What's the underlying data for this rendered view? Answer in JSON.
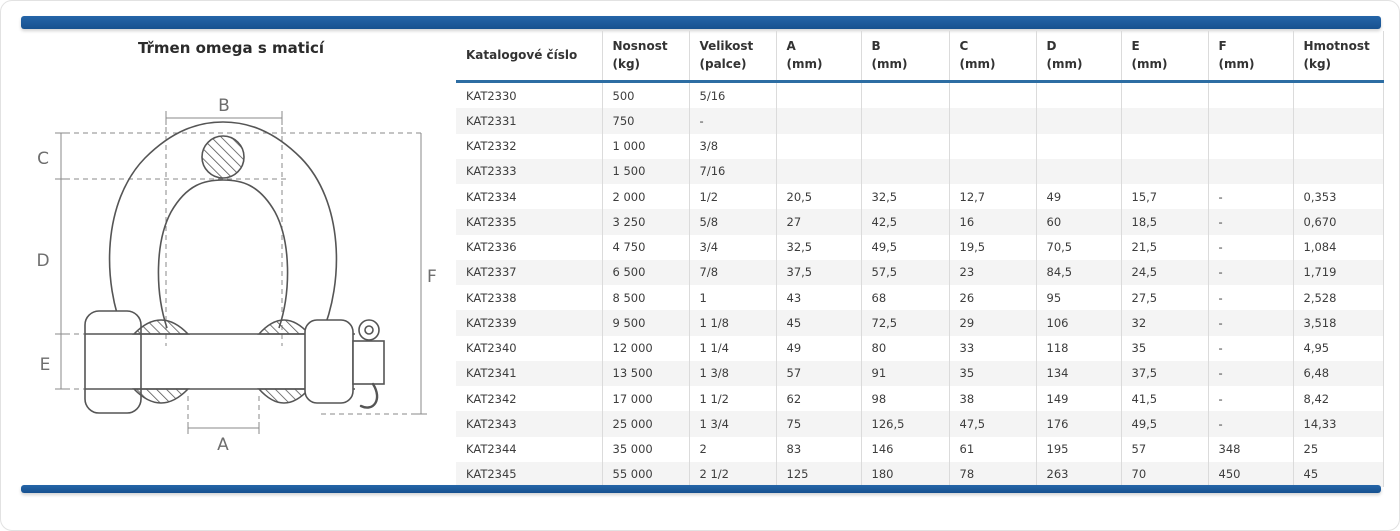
{
  "title": "Třmen omega s maticí",
  "colors": {
    "bar_blue": "#1d5a9b",
    "header_rule_blue": "#2d6da3",
    "row_alt_gray": "#f4f4f4"
  },
  "diagram": {
    "description": "omega-shackle-technical-drawing",
    "labels": {
      "a": "A",
      "b": "B",
      "c": "C",
      "d": "D",
      "e": "E",
      "f": "F"
    }
  },
  "table": {
    "columns": [
      {
        "line1": "Katalogové číslo",
        "line2": ""
      },
      {
        "line1": "Nosnost",
        "line2": "(kg)"
      },
      {
        "line1": "Velikost",
        "line2": "(palce)"
      },
      {
        "line1": "A",
        "line2": "(mm)"
      },
      {
        "line1": "B",
        "line2": "(mm)"
      },
      {
        "line1": "C",
        "line2": "(mm)"
      },
      {
        "line1": "D",
        "line2": "(mm)"
      },
      {
        "line1": "E",
        "line2": "(mm)"
      },
      {
        "line1": "F",
        "line2": "(mm)"
      },
      {
        "line1": "Hmotnost",
        "line2": "(kg)"
      }
    ],
    "rows": [
      [
        "KAT2330",
        "500",
        "5/16",
        "",
        "",
        "",
        "",
        "",
        "",
        ""
      ],
      [
        "KAT2331",
        "750",
        "-",
        "",
        "",
        "",
        "",
        "",
        "",
        ""
      ],
      [
        "KAT2332",
        "1 000",
        "3/8",
        "",
        "",
        "",
        "",
        "",
        "",
        ""
      ],
      [
        "KAT2333",
        "1 500",
        "7/16",
        "",
        "",
        "",
        "",
        "",
        "",
        ""
      ],
      [
        "KAT2334",
        "2 000",
        "1/2",
        "20,5",
        "32,5",
        "12,7",
        "49",
        "15,7",
        "-",
        "0,353"
      ],
      [
        "KAT2335",
        "3 250",
        "5/8",
        "27",
        "42,5",
        "16",
        "60",
        "18,5",
        "-",
        "0,670"
      ],
      [
        "KAT2336",
        "4 750",
        "3/4",
        "32,5",
        "49,5",
        "19,5",
        "70,5",
        "21,5",
        "-",
        "1,084"
      ],
      [
        "KAT2337",
        "6 500",
        "7/8",
        "37,5",
        "57,5",
        "23",
        "84,5",
        "24,5",
        "-",
        "1,719"
      ],
      [
        "KAT2338",
        "8 500",
        "1",
        "43",
        "68",
        "26",
        "95",
        "27,5",
        "-",
        "2,528"
      ],
      [
        "KAT2339",
        "9 500",
        "1 1/8",
        "45",
        "72,5",
        "29",
        "106",
        "32",
        "-",
        "3,518"
      ],
      [
        "KAT2340",
        "12 000",
        "1 1/4",
        "49",
        "80",
        "33",
        "118",
        "35",
        "-",
        "4,95"
      ],
      [
        "KAT2341",
        "13 500",
        "1 3/8",
        "57",
        "91",
        "35",
        "134",
        "37,5",
        "-",
        "6,48"
      ],
      [
        "KAT2342",
        "17 000",
        "1 1/2",
        "62",
        "98",
        "38",
        "149",
        "41,5",
        "-",
        "8,42"
      ],
      [
        "KAT2343",
        "25 000",
        "1 3/4",
        "75",
        "126,5",
        "47,5",
        "176",
        "49,5",
        "-",
        "14,33"
      ],
      [
        "KAT2344",
        "35 000",
        "2",
        "83",
        "146",
        "61",
        "195",
        "57",
        "348",
        "25"
      ],
      [
        "KAT2345",
        "55 000",
        "2 1/2",
        "125",
        "180",
        "78",
        "263",
        "70",
        "450",
        "45"
      ]
    ]
  }
}
